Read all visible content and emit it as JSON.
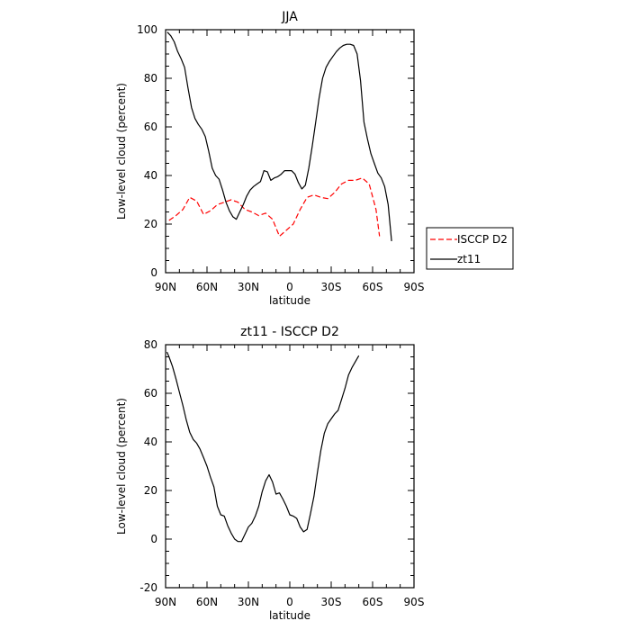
{
  "chart_data": [
    {
      "type": "line",
      "title": "JJA",
      "xlabel": "latitude",
      "ylabel": "Low-level cloud (percent)",
      "xlim": [
        90,
        -90
      ],
      "ylim": [
        0,
        100
      ],
      "x_ticks": [
        {
          "value": 90,
          "label": "90N"
        },
        {
          "value": 60,
          "label": "60N"
        },
        {
          "value": 30,
          "label": "30N"
        },
        {
          "value": 0,
          "label": "0"
        },
        {
          "value": -30,
          "label": "30S"
        },
        {
          "value": -60,
          "label": "60S"
        },
        {
          "value": -90,
          "label": "90S"
        }
      ],
      "y_ticks": [
        0,
        20,
        40,
        60,
        80,
        100
      ],
      "legend_position": "right",
      "series": [
        {
          "name": "ISCCP D2",
          "color": "#ff0000",
          "dash": "dashed",
          "x": [
            87.5,
            82.5,
            77.5,
            72.5,
            67.5,
            62.5,
            57.5,
            52.5,
            47.5,
            42.5,
            37.5,
            32.5,
            27.5,
            22.5,
            17.5,
            12.5,
            7.5,
            2.5,
            -2.5,
            -7.5,
            -12.5,
            -17.5,
            -22.5,
            -27.5,
            -32.5,
            -37.5,
            -42.5,
            -47.5,
            -52.5,
            -57.5,
            -62.5,
            -65
          ],
          "values": [
            21.5,
            23.5,
            26,
            31,
            29.5,
            24,
            25.5,
            28,
            29,
            30,
            29,
            26,
            25,
            23.5,
            24.5,
            22,
            15,
            17.5,
            20,
            26,
            31,
            32,
            31,
            30.5,
            33,
            36.5,
            38,
            38,
            39,
            36.5,
            26,
            15
          ]
        },
        {
          "name": "zt11",
          "color": "#000000",
          "dash": "solid",
          "x": [
            88.75,
            86.25,
            83.75,
            81.25,
            78.75,
            76.25,
            73.75,
            71.25,
            68.75,
            66.25,
            63.75,
            61.25,
            58.75,
            56.25,
            53.75,
            51.25,
            48.75,
            46.25,
            43.75,
            41.25,
            38.75,
            36.25,
            33.75,
            31.25,
            28.75,
            26.25,
            23.75,
            21.25,
            18.75,
            16.25,
            13.75,
            11.25,
            8.75,
            6.25,
            3.75,
            1.25,
            -1.25,
            -3.75,
            -6.25,
            -8.75,
            -11.25,
            -13.75,
            -16.25,
            -18.75,
            -21.25,
            -23.75,
            -26.25,
            -28.75,
            -31.25,
            -33.75,
            -36.25,
            -38.75,
            -41.25,
            -43.75,
            -46.25,
            -48.75,
            -51.25,
            -53.75,
            -56.25,
            -58.75,
            -61.25,
            -63.75,
            -66.25,
            -68.75,
            -71.25,
            -73.75,
            -76.25,
            -78.75,
            -81.25,
            -83.75,
            -86.25,
            -88.75
          ],
          "values": [
            99,
            97.5,
            95,
            91,
            88,
            84.5,
            76,
            68,
            63.5,
            61,
            59,
            56,
            50,
            43,
            40,
            38.5,
            34,
            29,
            25.5,
            23,
            22,
            25,
            28,
            31.5,
            34,
            35.5,
            36.5,
            37.5,
            42,
            41.5,
            38,
            39,
            39.5,
            40.5,
            42,
            42,
            42,
            40.5,
            37,
            34.5,
            36,
            43,
            52,
            62,
            72,
            80,
            84.5,
            87,
            89,
            91,
            92.5,
            93.5,
            94,
            94,
            93.5,
            90,
            79,
            62,
            55,
            49,
            45,
            41,
            39,
            35.5,
            28,
            13,
            null,
            null,
            null,
            null,
            null,
            null
          ]
        }
      ]
    },
    {
      "type": "line",
      "title": "zt11 - ISCCP D2",
      "xlabel": "latitude",
      "ylabel": "Low-level cloud (percent)",
      "xlim": [
        90,
        -90
      ],
      "ylim": [
        -20,
        80
      ],
      "x_ticks": [
        {
          "value": 90,
          "label": "90N"
        },
        {
          "value": 60,
          "label": "60N"
        },
        {
          "value": 30,
          "label": "30N"
        },
        {
          "value": 0,
          "label": "0"
        },
        {
          "value": -30,
          "label": "30S"
        },
        {
          "value": -60,
          "label": "60S"
        },
        {
          "value": -90,
          "label": "90S"
        }
      ],
      "y_ticks": [
        -20,
        0,
        20,
        40,
        60,
        80
      ],
      "series": [
        {
          "name": "",
          "color": "#000000",
          "dash": "solid",
          "x": [
            89,
            87.5,
            85,
            82.5,
            80,
            77.5,
            75,
            72.5,
            70,
            67.5,
            65,
            62.5,
            60,
            57.5,
            55,
            52.5,
            50,
            47.5,
            45,
            42.5,
            40,
            37.5,
            35,
            32.5,
            30,
            27.5,
            25,
            22.5,
            20,
            17.5,
            15,
            12.5,
            10,
            7.5,
            5,
            2.5,
            0,
            -2.5,
            -5,
            -7.5,
            -10,
            -12.5,
            -15,
            -17.5,
            -20,
            -22.5,
            -25,
            -27.5,
            -30,
            -32.5,
            -35,
            -37.5,
            -40,
            -42.5,
            -45,
            -47.5,
            -50,
            -52.5,
            -55,
            -57.5,
            -60,
            -62.5,
            -65
          ],
          "values": [
            77,
            75,
            71,
            66,
            60.5,
            55,
            49,
            44,
            41,
            39.5,
            37,
            33.5,
            30,
            25.5,
            21.5,
            13.5,
            10,
            9.5,
            5.5,
            2.5,
            0,
            -1,
            -1,
            2,
            5,
            6.5,
            9.5,
            13.5,
            19.5,
            24,
            26.5,
            23.5,
            18.5,
            19,
            16.5,
            13.5,
            10,
            9.5,
            8.5,
            5,
            3,
            4,
            10.5,
            17.5,
            27.5,
            36.5,
            43.5,
            47.5,
            49.5,
            51.5,
            53,
            57.5,
            62,
            67.5,
            70.5,
            73,
            75.5,
            null,
            null,
            null,
            null,
            null,
            null
          ]
        }
      ]
    }
  ]
}
